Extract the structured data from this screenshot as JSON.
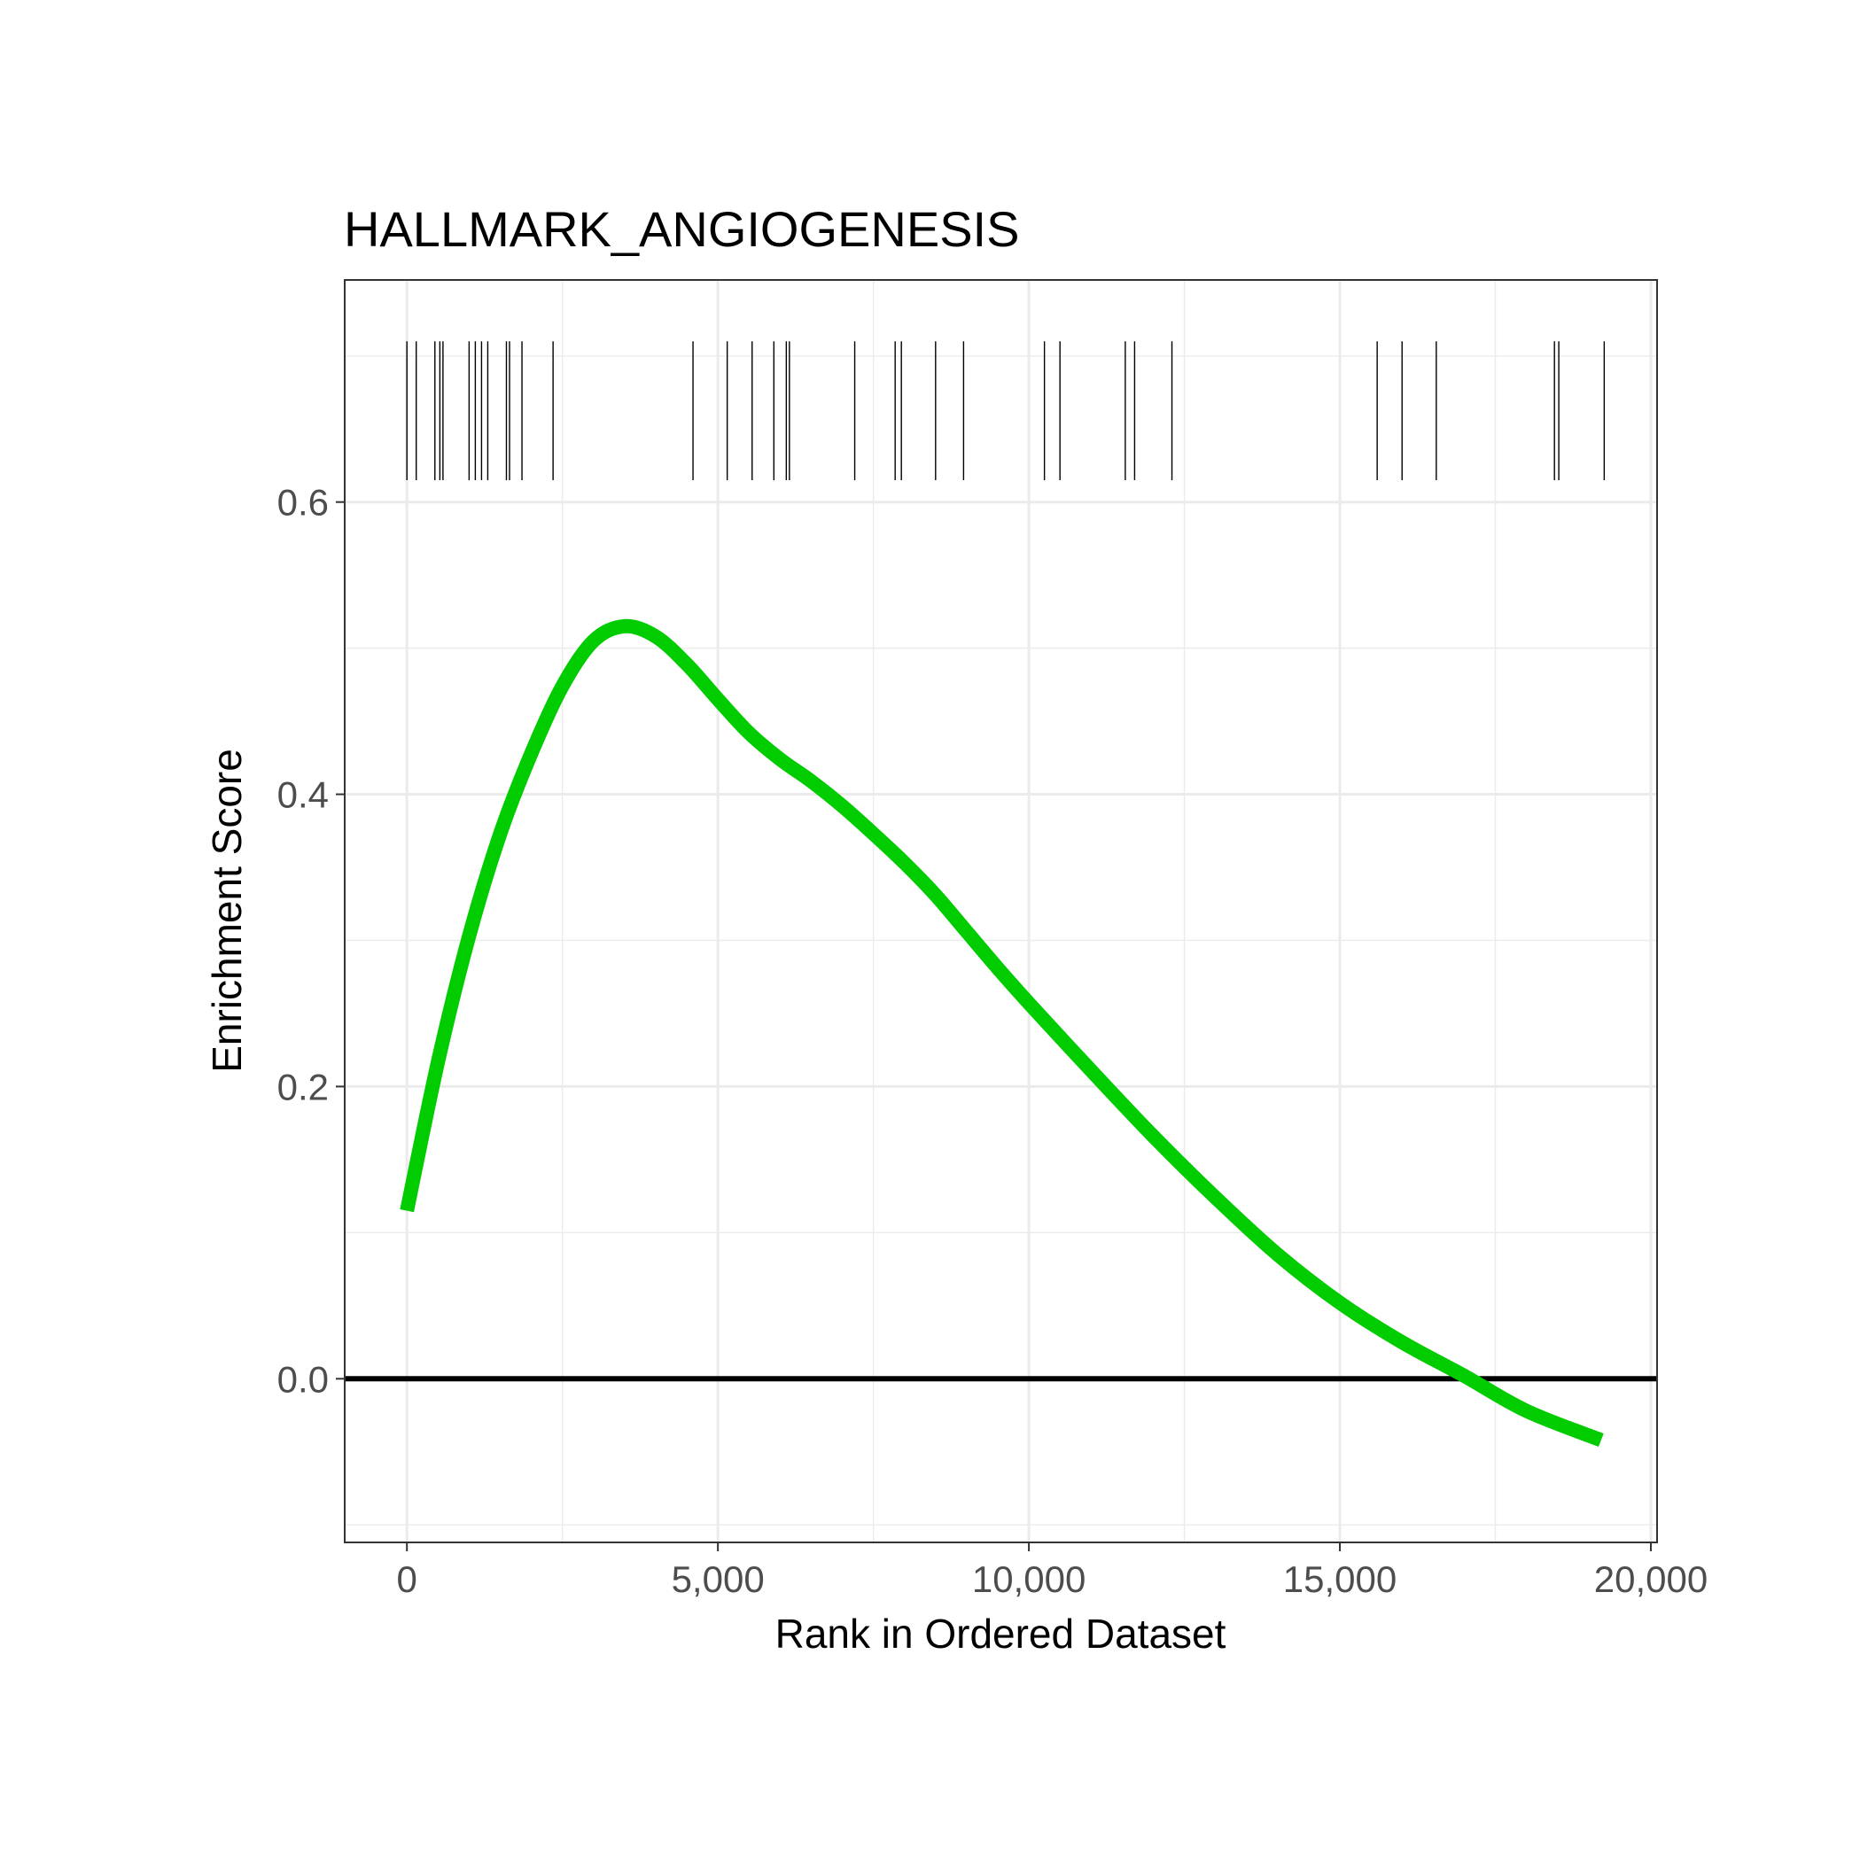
{
  "chart_data": {
    "type": "line",
    "title": "HALLMARK_ANGIOGENESIS",
    "xlabel": "Rank in Ordered Dataset",
    "ylabel": "Enrichment Score",
    "xlim": [
      -1000,
      20100
    ],
    "ylim": [
      -0.112,
      0.752
    ],
    "x_ticks": [
      0,
      5000,
      10000,
      15000,
      20000
    ],
    "x_tick_labels": [
      "0",
      "5,000",
      "10,000",
      "15,000",
      "20,000"
    ],
    "y_ticks": [
      0.0,
      0.2,
      0.4,
      0.6
    ],
    "y_tick_labels": [
      "0.0",
      "0.2",
      "0.4",
      "0.6"
    ],
    "grid": true,
    "hline": 0,
    "series": [
      {
        "color": "#00cc00",
        "x": [
          0,
          500,
          1000,
          1500,
          2000,
          2500,
          3000,
          3500,
          4000,
          4500,
          5000,
          5500,
          6000,
          6500,
          7000,
          7500,
          8000,
          8500,
          9000,
          9500,
          10000,
          11000,
          12000,
          13000,
          14000,
          15000,
          16000,
          17000,
          18000,
          19200
        ],
        "y": [
          0.115,
          0.217,
          0.303,
          0.373,
          0.428,
          0.474,
          0.505,
          0.515,
          0.508,
          0.489,
          0.465,
          0.442,
          0.424,
          0.409,
          0.392,
          0.373,
          0.353,
          0.331,
          0.306,
          0.281,
          0.257,
          0.211,
          0.166,
          0.124,
          0.085,
          0.052,
          0.025,
          0.002,
          -0.022,
          -0.042
        ]
      }
    ],
    "rug": {
      "ymin": 0.615,
      "ymax": 0.71,
      "positions": [
        0,
        150,
        450,
        530,
        580,
        1000,
        1100,
        1200,
        1300,
        1600,
        1650,
        1850,
        2350,
        4600,
        5150,
        5550,
        5900,
        6100,
        6150,
        7200,
        7850,
        7950,
        8500,
        8950,
        10250,
        10500,
        11550,
        11700,
        12300,
        15600,
        16000,
        16550,
        18450,
        18520,
        19250
      ]
    }
  }
}
